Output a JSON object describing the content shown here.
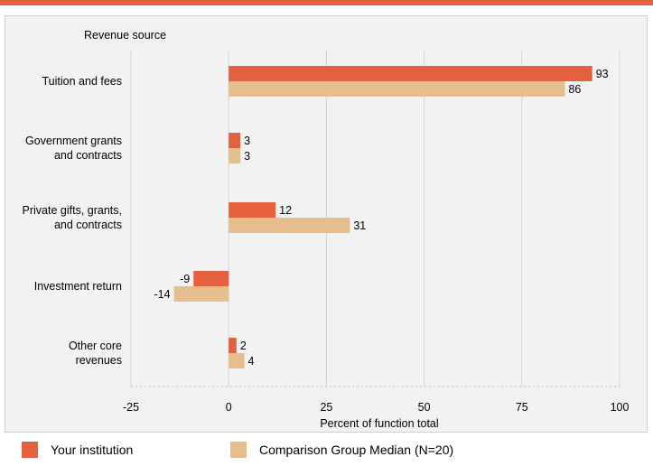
{
  "chart_data": {
    "type": "bar",
    "orientation": "horizontal",
    "title": "Revenue source",
    "xlabel": "Percent of function total",
    "categories": [
      [
        "Tuition and fees"
      ],
      [
        "Government grants",
        "and contracts"
      ],
      [
        "Private gifts, grants,",
        "and contracts"
      ],
      [
        "Investment return"
      ],
      [
        "Other core",
        "revenues"
      ]
    ],
    "series": [
      {
        "name": "Your institution",
        "color": "#e4603f",
        "values": [
          93,
          3,
          12,
          -9,
          2
        ]
      },
      {
        "name": "Comparison Group Median (N=20)",
        "color": "#e6bd8c",
        "values": [
          86,
          3,
          31,
          -14,
          4
        ]
      }
    ],
    "xlim": [
      -25,
      100
    ],
    "xticks": [
      -25,
      0,
      25,
      50,
      75,
      100
    ],
    "grid": true,
    "legend_position": "bottom"
  }
}
